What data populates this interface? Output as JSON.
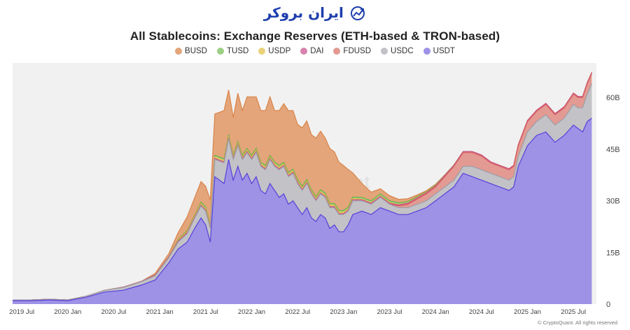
{
  "logo": {
    "text": "ایران بروکر",
    "mark": "chart-trend-icon"
  },
  "chart_data": {
    "type": "area",
    "stacked": true,
    "title": "All Stablecoins: Exchange Reserves (ETH-based & TRON-based)",
    "y_unit": "billion USD",
    "ylim": [
      0,
      70
    ],
    "y_ticks": [
      0,
      15,
      30,
      45,
      60
    ],
    "y_tick_labels": [
      "0",
      "15B",
      "30B",
      "45B",
      "60B"
    ],
    "x_range": [
      2019.4,
      2025.75
    ],
    "x_tick_values": [
      2019.5,
      2020.0,
      2020.5,
      2021.0,
      2021.5,
      2022.0,
      2022.5,
      2023.0,
      2023.5,
      2024.0,
      2024.5,
      2025.0,
      2025.5
    ],
    "x_tick_labels": [
      "2019 Jul",
      "2020 Jan",
      "2020 Jul",
      "2021 Jan",
      "2021 Jul",
      "2022 Jan",
      "2022 Jul",
      "2023 Jan",
      "2023 Jul",
      "2024 Jan",
      "2024 Jul",
      "2025 Jan",
      "2025 Jul"
    ],
    "watermark": "CryptoQuant",
    "credit": "© CryptoQuant. All rights reserved",
    "x": [
      2019.4,
      2019.6,
      2019.8,
      2020.0,
      2020.2,
      2020.4,
      2020.6,
      2020.8,
      2020.95,
      2021.1,
      2021.2,
      2021.3,
      2021.38,
      2021.45,
      2021.5,
      2021.55,
      2021.6,
      2021.7,
      2021.75,
      2021.8,
      2021.85,
      2021.9,
      2021.95,
      2022.0,
      2022.05,
      2022.1,
      2022.15,
      2022.2,
      2022.25,
      2022.3,
      2022.35,
      2022.4,
      2022.45,
      2022.5,
      2022.55,
      2022.6,
      2022.65,
      2022.7,
      2022.75,
      2022.8,
      2022.85,
      2022.9,
      2022.95,
      2023.0,
      2023.05,
      2023.1,
      2023.2,
      2023.3,
      2023.4,
      2023.5,
      2023.6,
      2023.7,
      2023.8,
      2023.9,
      2024.0,
      2024.1,
      2024.2,
      2024.3,
      2024.4,
      2024.5,
      2024.6,
      2024.7,
      2024.8,
      2024.85,
      2024.9,
      2025.0,
      2025.1,
      2025.2,
      2025.3,
      2025.4,
      2025.5,
      2025.55,
      2025.6,
      2025.65,
      2025.7
    ],
    "series": [
      {
        "name": "USDT",
        "color": "#5a3fd9",
        "fill": "#9d92e6",
        "values": [
          1,
          1,
          1.2,
          1,
          2,
          3.5,
          4,
          5.5,
          7,
          12,
          16,
          18,
          22,
          25,
          23,
          18,
          37,
          35,
          42,
          36,
          40,
          36,
          38,
          35,
          37,
          33,
          32,
          35,
          33,
          31,
          32,
          29,
          30,
          28,
          26,
          28,
          25,
          24,
          26,
          25,
          22,
          23,
          21,
          21,
          23,
          26,
          27,
          26,
          28,
          27,
          26,
          26,
          27,
          28,
          30,
          32,
          34,
          38,
          37,
          36,
          35,
          34,
          33,
          34,
          40,
          46,
          49,
          50,
          47,
          49,
          52,
          51,
          50,
          53,
          54
        ]
      },
      {
        "name": "USDC",
        "color": "#9e9ea6",
        "fill": "#c2c2c7",
        "values": [
          0.2,
          0.2,
          0.2,
          0.2,
          0.3,
          0.5,
          0.8,
          1,
          1.2,
          1.5,
          2,
          2.5,
          3,
          3.5,
          4,
          4,
          5,
          6,
          6,
          6,
          6,
          6,
          6,
          7,
          7,
          7,
          7,
          7,
          7,
          8,
          8,
          8,
          8,
          7,
          7,
          7,
          7,
          6,
          6,
          6,
          6,
          5,
          5,
          5,
          4,
          4,
          3,
          3,
          3,
          2,
          2,
          2,
          2,
          2,
          2,
          2,
          2,
          2,
          3,
          3,
          3,
          3,
          3,
          3,
          3,
          4,
          4,
          5,
          5,
          5,
          6,
          6,
          7,
          8,
          10
        ]
      },
      {
        "name": "FDUSD",
        "color": "#d95f5f",
        "fill": "#e39a92",
        "values": [
          0,
          0,
          0,
          0,
          0,
          0,
          0,
          0,
          0,
          0,
          0,
          0,
          0,
          0,
          0,
          0,
          0,
          0,
          0,
          0,
          0,
          0,
          0,
          0,
          0,
          0,
          0,
          0,
          0,
          0,
          0,
          0,
          0,
          0,
          0,
          0,
          0,
          0,
          0,
          0,
          0,
          0,
          0,
          0,
          0,
          0,
          0,
          0,
          0,
          0,
          0.5,
          1,
          1.5,
          2,
          2,
          3,
          4,
          4,
          4,
          4,
          3,
          3,
          3,
          3,
          3,
          3,
          3,
          3,
          3,
          3,
          3,
          3,
          3,
          3,
          3
        ]
      },
      {
        "name": "DAI",
        "color": "#c9518c",
        "fill": "#d982ad",
        "values": [
          0,
          0,
          0,
          0,
          0,
          0,
          0.1,
          0.1,
          0.2,
          0.2,
          0.3,
          0.3,
          0.3,
          0.3,
          0.3,
          0.3,
          0.3,
          0.3,
          0.3,
          0.3,
          0.3,
          0.3,
          0.3,
          0.3,
          0.3,
          0.3,
          0.3,
          0.3,
          0.3,
          0.3,
          0.3,
          0.3,
          0.3,
          0.3,
          0.3,
          0.3,
          0.3,
          0.3,
          0.3,
          0.3,
          0.3,
          0.3,
          0.3,
          0.3,
          0.3,
          0.3,
          0.3,
          0.3,
          0.3,
          0.3,
          0.3,
          0.3,
          0.3,
          0.3,
          0.3,
          0.3,
          0.3,
          0.3,
          0.3,
          0.3,
          0.3,
          0.3,
          0.3,
          0.3,
          0.3,
          0.3,
          0.3,
          0.3,
          0.3,
          0.3,
          0.3,
          0.3,
          0.3,
          0.3,
          0.3
        ]
      },
      {
        "name": "USDP",
        "color": "#e6c243",
        "fill": "#ead27a",
        "values": [
          0,
          0,
          0,
          0,
          0,
          0,
          0,
          0,
          0,
          0,
          0.2,
          0.3,
          0.3,
          0.4,
          0.4,
          0.4,
          0.4,
          0.4,
          0.4,
          0.4,
          0.4,
          0.4,
          0.4,
          0.4,
          0.4,
          0.4,
          0.4,
          0.4,
          0.4,
          0.4,
          0.4,
          0.4,
          0.4,
          0.4,
          0.4,
          0.4,
          0.4,
          0.4,
          0.4,
          0.4,
          0.4,
          0.4,
          0.4,
          0.4,
          0.3,
          0.3,
          0.2,
          0.2,
          0.2,
          0.2,
          0.1,
          0.1,
          0.1,
          0.1,
          0.1,
          0,
          0,
          0,
          0,
          0,
          0,
          0,
          0,
          0,
          0,
          0,
          0,
          0,
          0,
          0,
          0,
          0,
          0,
          0,
          0
        ]
      },
      {
        "name": "TUSD",
        "color": "#6ab04c",
        "fill": "#9ccf83",
        "values": [
          0,
          0,
          0,
          0,
          0,
          0,
          0,
          0,
          0,
          0,
          0.2,
          0.3,
          0.3,
          0.4,
          0.5,
          0.5,
          0.5,
          0.5,
          0.5,
          0.5,
          0.5,
          0.5,
          0.5,
          0.5,
          0.5,
          0.5,
          0.5,
          0.5,
          0.5,
          0.5,
          0.5,
          0.5,
          0.5,
          0.5,
          0.5,
          0.5,
          0.5,
          0.5,
          0.5,
          0.5,
          0.5,
          0.5,
          0.5,
          0.5,
          0.5,
          0.5,
          0.5,
          0.5,
          0.5,
          0.5,
          0.5,
          0.4,
          0.3,
          0.2,
          0.2,
          0.1,
          0.1,
          0,
          0,
          0,
          0,
          0,
          0,
          0,
          0,
          0,
          0,
          0,
          0,
          0,
          0,
          0,
          0,
          0,
          0
        ]
      },
      {
        "name": "BUSD",
        "color": "#d9844a",
        "fill": "#e4a57a",
        "values": [
          0,
          0,
          0,
          0,
          0,
          0,
          0,
          0,
          0.5,
          1,
          2,
          4,
          5,
          6,
          6,
          7,
          12,
          14,
          13,
          11,
          14,
          13,
          15,
          17,
          15,
          15,
          16,
          17,
          15,
          16,
          17,
          18,
          17,
          16,
          17,
          17,
          16,
          17,
          17,
          16,
          16,
          15,
          14,
          13,
          11,
          7,
          4,
          2.5,
          1.5,
          1.5,
          1,
          0.8,
          0.5,
          0.3,
          0.2,
          0.1,
          0,
          0,
          0,
          0,
          0,
          0,
          0,
          0,
          0,
          0,
          0,
          0,
          0,
          0,
          0,
          0,
          0,
          0,
          0
        ]
      }
    ],
    "legend_order": [
      "BUSD",
      "TUSD",
      "USDP",
      "DAI",
      "FDUSD",
      "USDC",
      "USDT"
    ]
  }
}
